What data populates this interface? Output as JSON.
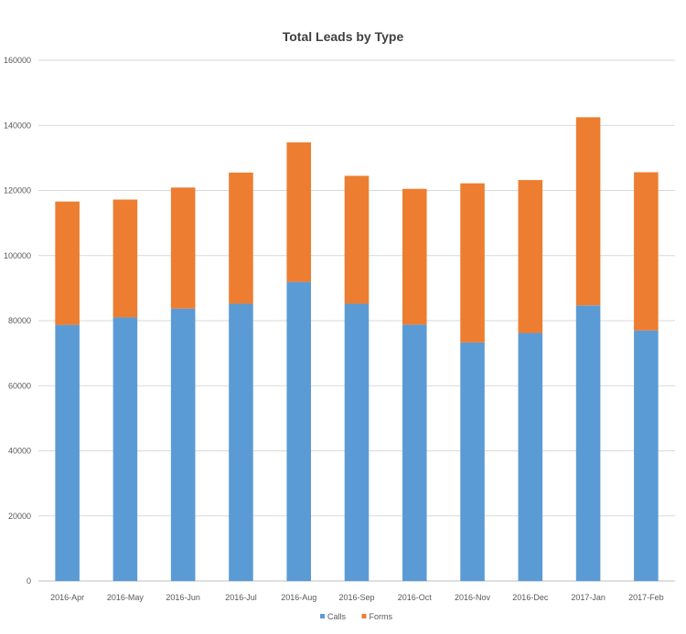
{
  "colors": {
    "calls": "#5b9bd5",
    "forms": "#ed7d31",
    "grid": "#d9d9d9",
    "text": "#595959"
  },
  "chart_data": {
    "type": "bar",
    "stacked": true,
    "title": "Total Leads by Type",
    "xlabel": "",
    "ylabel": "",
    "categories": [
      "2016-Apr",
      "2016-May",
      "2016-Jun",
      "2016-Jul",
      "2016-Aug",
      "2016-Sep",
      "2016-Oct",
      "2016-Nov",
      "2016-Dec",
      "2017-Jan",
      "2017-Feb"
    ],
    "series": [
      {
        "name": "Calls",
        "values": [
          78700,
          81000,
          83700,
          85200,
          91900,
          85200,
          78800,
          73300,
          76200,
          84700,
          77000
        ]
      },
      {
        "name": "Forms",
        "values": [
          37900,
          36200,
          37200,
          40300,
          42900,
          39300,
          41700,
          48900,
          47000,
          57800,
          48600
        ]
      }
    ],
    "yticks": [
      "0",
      "20000",
      "40000",
      "60000",
      "80000",
      "100000",
      "120000",
      "140000",
      "160000"
    ],
    "ylim": [
      0,
      160000
    ],
    "grid": true,
    "legend_position": "bottom"
  }
}
